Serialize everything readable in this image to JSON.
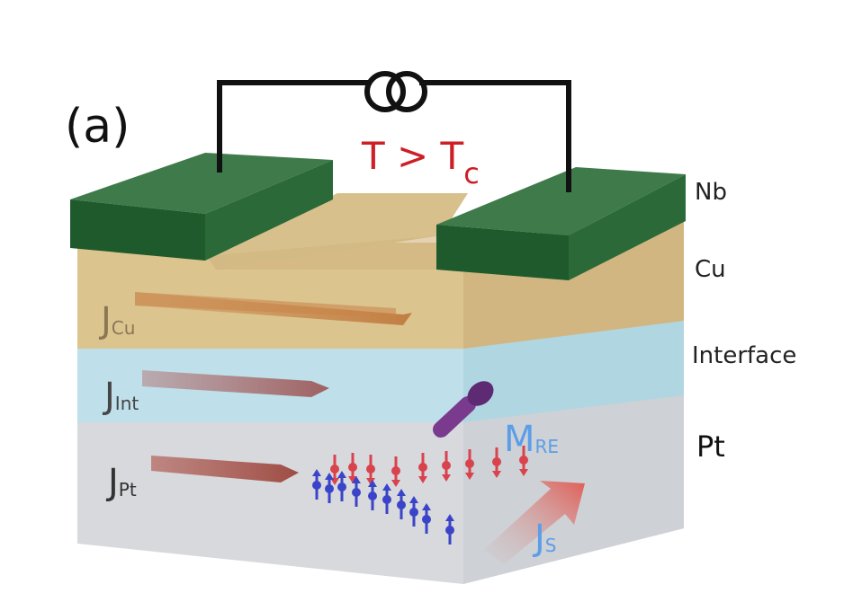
{
  "panel_label": "(a)",
  "condition": {
    "main": "T > T",
    "sub": "c"
  },
  "layers": {
    "nb": "Nb",
    "cu": "Cu",
    "interface": "Interface",
    "pt": "Pt"
  },
  "currents": {
    "cu": {
      "main": "J",
      "sub": "Cu"
    },
    "int": {
      "main": "J",
      "sub": "Int"
    },
    "pt": {
      "main": "J",
      "sub": "Pt"
    },
    "spin": {
      "main": "J",
      "sub": "S"
    }
  },
  "magnetization": {
    "main": "M",
    "sub": "RE"
  },
  "colors": {
    "nb_top": "#3f7a4a",
    "nb_front": "#1f5a2c",
    "cu_layer": "#dcc48f",
    "interface_layer": "#bfe0ea",
    "pt_layer": "#d6d8dc",
    "arrow": "#a86a55",
    "spin_up": "#3b44c8",
    "spin_down": "#d9434d",
    "condition_text": "#cc1f26",
    "label_blue": "#5b9ee8"
  }
}
